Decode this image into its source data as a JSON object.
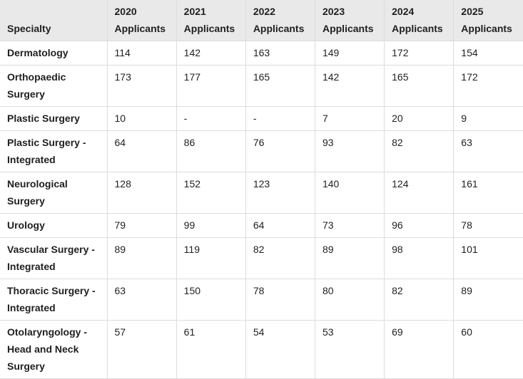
{
  "table": {
    "header": [
      "Specialty",
      "2020 Applicants",
      "2021 Applicants",
      "2022 Applicants",
      "2023 Applicants",
      "2024 Applicants",
      "2025 Applicants"
    ],
    "rows": [
      [
        "Dermatology",
        114,
        142,
        163,
        149,
        172,
        154
      ],
      [
        "Orthopaedic Surgery",
        173,
        177,
        165,
        142,
        165,
        172
      ],
      [
        "Plastic Surgery",
        10,
        "-",
        "-",
        7,
        20,
        9
      ],
      [
        "Plastic Surgery - Integrated",
        64,
        86,
        76,
        93,
        82,
        63
      ],
      [
        "Neurological Surgery",
        128,
        152,
        123,
        140,
        124,
        161
      ],
      [
        "Urology",
        79,
        99,
        64,
        73,
        96,
        78
      ],
      [
        "Vascular Surgery - Integrated",
        89,
        119,
        82,
        89,
        98,
        101
      ],
      [
        "Thoracic Surgery - Integrated",
        63,
        150,
        78,
        80,
        82,
        89
      ],
      [
        "Otolaryngology - Head and Neck Surgery",
        57,
        61,
        54,
        53,
        69,
        60
      ]
    ]
  }
}
